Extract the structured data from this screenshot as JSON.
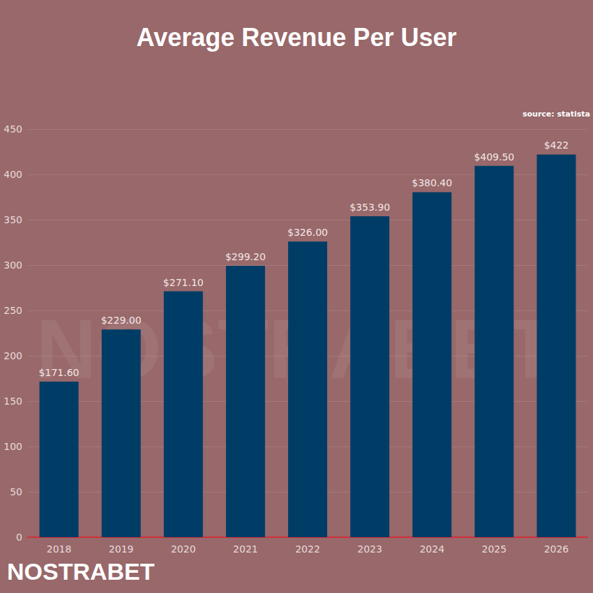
{
  "chart_data": {
    "type": "bar",
    "title": "Average Revenue Per User",
    "source": "source: statista",
    "watermark": "NOSTRABET",
    "logo": "NOSTRABET",
    "categories": [
      "2018",
      "2019",
      "2020",
      "2021",
      "2022",
      "2023",
      "2024",
      "2025",
      "2026"
    ],
    "values": [
      171.6,
      229,
      271.1,
      299.2,
      326,
      353.9,
      380.4,
      409.5,
      422
    ],
    "value_labels": [
      "$171.60",
      "$229.00",
      "$271.10",
      "$299.20",
      "$326.00",
      "$353.90",
      "$380.40",
      "$409.50",
      "$422"
    ],
    "color": "#003d66",
    "ylim": [
      0,
      450
    ],
    "yticks": [
      0,
      50,
      100,
      150,
      200,
      250,
      300,
      350,
      400,
      450
    ],
    "grid": true,
    "data_labels": true
  }
}
